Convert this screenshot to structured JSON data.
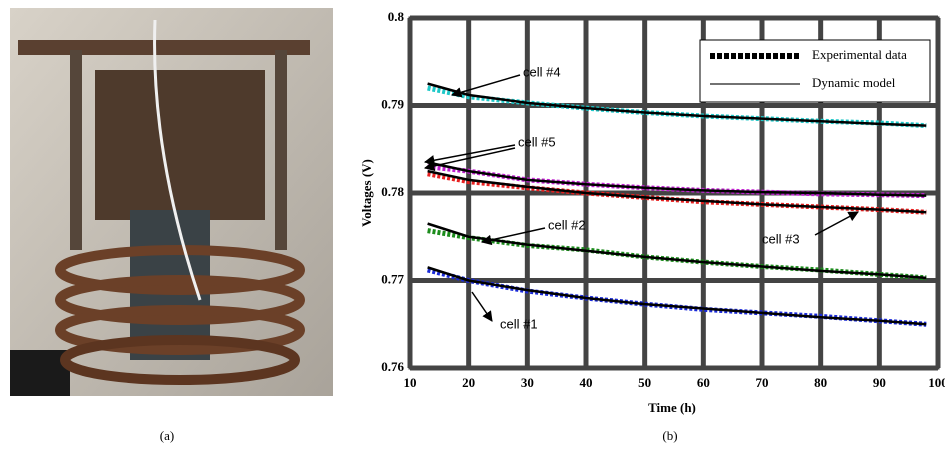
{
  "chart_data": {
    "type": "line",
    "x": [
      13,
      20,
      30,
      40,
      50,
      60,
      70,
      80,
      90,
      98
    ],
    "series": [
      {
        "color": "#1ec8c8",
        "values": [
          0.792,
          0.791,
          0.7903,
          0.7897,
          0.7892,
          0.7888,
          0.7885,
          0.7882,
          0.788,
          0.7877
        ]
      },
      {
        "color": "#c020d0",
        "values": [
          0.783,
          0.7825,
          0.7815,
          0.781,
          0.7806,
          0.7803,
          0.7801,
          0.7799,
          0.7798,
          0.7797
        ]
      },
      {
        "color": "#e82020",
        "values": [
          0.7822,
          0.7813,
          0.7806,
          0.78,
          0.7795,
          0.779,
          0.7787,
          0.7784,
          0.7781,
          0.7778
        ]
      },
      {
        "color": "#1c8c1c",
        "values": [
          0.7757,
          0.7749,
          0.774,
          0.7735,
          0.7727,
          0.7721,
          0.7716,
          0.7712,
          0.7707,
          0.7703
        ]
      },
      {
        "color": "#1a2ad8",
        "values": [
          0.7712,
          0.77,
          0.7688,
          0.768,
          0.7673,
          0.7667,
          0.7663,
          0.7659,
          0.7654,
          0.765
        ]
      }
    ],
    "model_color": "#000000",
    "model_series": [
      [
        0.7925,
        0.7912,
        0.7903,
        0.7897,
        0.7892,
        0.7888,
        0.7885,
        0.7882,
        0.7879,
        0.7877
      ],
      [
        0.7835,
        0.7825,
        0.7815,
        0.781,
        0.7806,
        0.7803,
        0.7801,
        0.78,
        0.7798,
        0.7797
      ],
      [
        0.7825,
        0.7815,
        0.7807,
        0.78,
        0.7795,
        0.7791,
        0.7787,
        0.7784,
        0.7781,
        0.7778
      ],
      [
        0.7765,
        0.775,
        0.7741,
        0.7734,
        0.7727,
        0.7721,
        0.7716,
        0.7711,
        0.7707,
        0.7703
      ],
      [
        0.7715,
        0.77,
        0.7689,
        0.768,
        0.7673,
        0.7668,
        0.7663,
        0.7658,
        0.7654,
        0.765
      ]
    ],
    "legend": [
      "Experimental data",
      "Dynamic model"
    ],
    "annotations": [
      "cell #4",
      "cell #5",
      "cell #3",
      "cell #2",
      "cell #1"
    ],
    "x_label": "Time (h)",
    "y_label": "Voltages (V)",
    "xlim": [
      10,
      100
    ],
    "xticks": [
      10,
      20,
      30,
      40,
      50,
      60,
      70,
      80,
      90,
      100
    ],
    "ylim": [
      0.76,
      0.8
    ],
    "yticks": [
      0.76,
      0.77,
      0.78,
      0.79,
      0.8
    ],
    "grid": true
  },
  "captions": [
    "(a)",
    "(b)"
  ]
}
